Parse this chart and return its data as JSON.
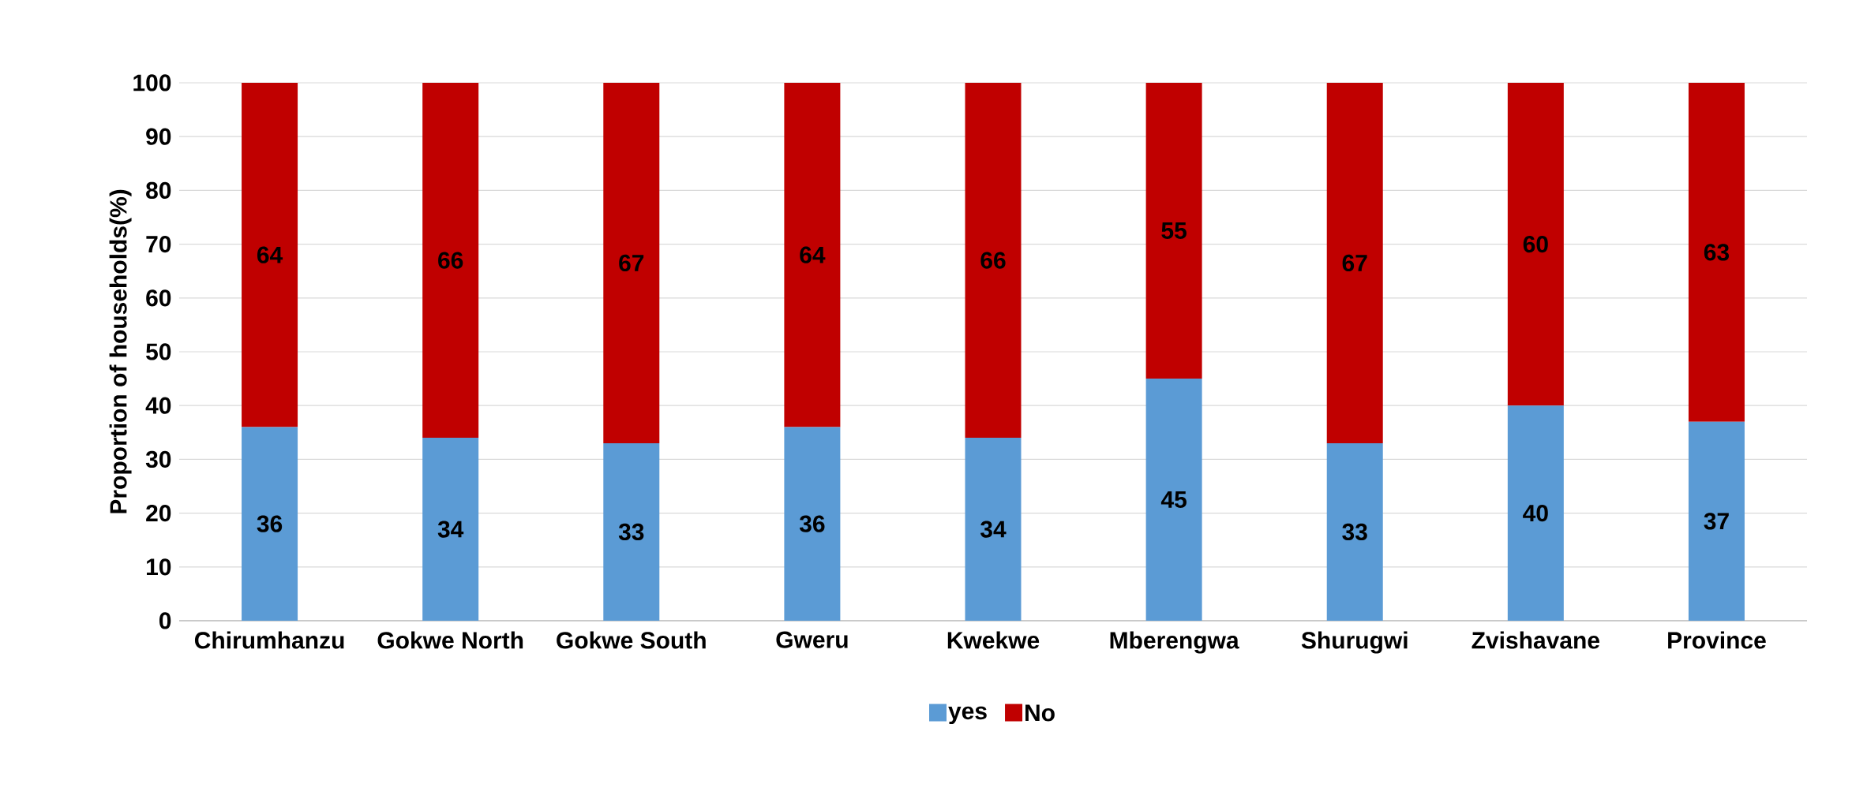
{
  "chart_data": {
    "type": "bar",
    "stacked": true,
    "ylabel": "Proportion of households(%)",
    "categories": [
      "Chirumhanzu",
      "Gokwe North",
      "Gokwe South",
      "Gweru",
      "Kwekwe",
      "Mberengwa",
      "Shurugwi",
      "Zvishavane",
      "Province"
    ],
    "series": [
      {
        "name": "yes",
        "color": "#5b9bd5",
        "values": [
          36,
          34,
          33,
          36,
          34,
          45,
          33,
          40,
          37
        ]
      },
      {
        "name": "No",
        "color": "#c00000",
        "values": [
          64,
          66,
          67,
          64,
          66,
          55,
          67,
          60,
          63
        ]
      }
    ],
    "ylim": [
      0,
      100
    ],
    "yticks": [
      0,
      10,
      20,
      30,
      40,
      50,
      60,
      70,
      80,
      90,
      100
    ],
    "grid": "y",
    "legend": "bottom",
    "data_labels": true
  }
}
